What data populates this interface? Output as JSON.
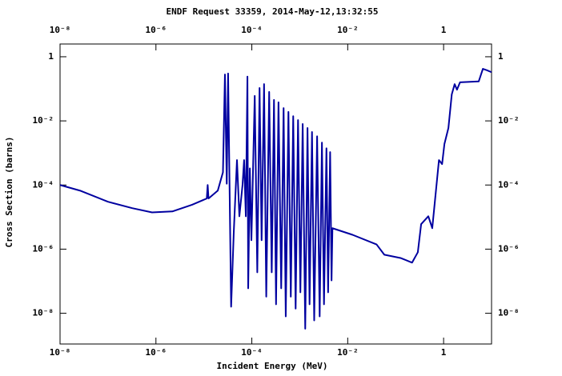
{
  "chart_data": {
    "type": "line",
    "title": "ENDF Request 33359, 2014-May-12,13:32:55",
    "xlabel": "Incident Energy (MeV)",
    "ylabel": "Cross Section (barns)",
    "xscale": "log",
    "yscale": "log",
    "xlim": [
      1e-08,
      10
    ],
    "ylim": [
      1.1e-09,
      2.5
    ],
    "xticks": [
      {
        "value": 1e-08,
        "label": "10⁻⁸"
      },
      {
        "value": 1e-06,
        "label": "10⁻⁶"
      },
      {
        "value": 0.0001,
        "label": "10⁻⁴"
      },
      {
        "value": 0.01,
        "label": "10⁻²"
      },
      1
    ],
    "yticks": [
      1,
      {
        "value": 0.01,
        "label": "10⁻²"
      },
      {
        "value": 0.0001,
        "label": "10⁻⁴"
      },
      {
        "value": 1e-06,
        "label": "10⁻⁶"
      },
      {
        "value": 1e-08,
        "label": "10⁻⁸"
      }
    ],
    "color": "#0000a0",
    "x": [
      1e-08,
      2.6e-08,
      1e-07,
      3.2e-07,
      8.3e-07,
      2.2e-06,
      5.6e-06,
      1.15e-05,
      1.2e-05,
      1.25e-05,
      1.95e-05,
      2.5e-05,
      2.75e-05,
      3e-05,
      3.2e-05,
      3.7e-05,
      4.2e-05,
      4.9e-05,
      5.5e-05,
      6.4e-05,
      6.9e-05,
      7.5e-05,
      8.1e-05,
      8.4e-05,
      9.1e-05,
      9.8e-05,
      0.000115,
      0.00013,
      0.000145,
      0.00016,
      0.00018,
      0.0002,
      0.00023,
      0.00026,
      0.00029,
      0.00032,
      0.00036,
      0.00041,
      0.00046,
      0.00051,
      0.00058,
      0.00065,
      0.00073,
      0.00082,
      0.00092,
      0.00103,
      0.00115,
      0.0013,
      0.00145,
      0.0016,
      0.0018,
      0.002,
      0.0023,
      0.0026,
      0.0029,
      0.0032,
      0.0036,
      0.0039,
      0.0043,
      0.0046,
      0.0048,
      0.0126,
      0.04,
      0.058,
      0.126,
      0.22,
      0.29,
      0.34,
      0.48,
      0.58,
      0.8,
      0.93,
      1.04,
      1.26,
      1.48,
      1.7,
      1.9,
      2.2,
      5.4,
      6.6,
      8.0,
      10
    ],
    "values": [
      0.0001,
      6.7e-05,
      3e-05,
      1.9e-05,
      1.4e-05,
      1.5e-05,
      2.4e-05,
      3.8e-05,
      0.0001,
      3.8e-05,
      6.7e-05,
      0.00025,
      0.28,
      0.00011,
      0.3,
      1.6e-08,
      3.3e-06,
      0.0006,
      1.06e-05,
      0.0001,
      0.0006,
      1.06e-05,
      0.24,
      6e-08,
      0.00033,
      1.9e-06,
      0.06,
      1.9e-07,
      0.106,
      1.9e-06,
      0.14,
      3.3e-08,
      0.08,
      1.9e-07,
      0.045,
      1.9e-08,
      0.038,
      6e-08,
      0.025,
      8e-09,
      0.019,
      3.3e-08,
      0.014,
      1.4e-08,
      0.0106,
      4.5e-08,
      0.008,
      3.3e-09,
      0.006,
      1.9e-08,
      0.0045,
      6e-09,
      0.0033,
      8e-09,
      0.0021,
      1.9e-08,
      0.0014,
      4.5e-08,
      0.00106,
      1.06e-07,
      4.5e-06,
      2.8e-06,
      1.4e-06,
      6.7e-07,
      5.3e-07,
      3.8e-07,
      8e-07,
      6e-06,
      1.06e-05,
      4.5e-06,
      0.0006,
      0.00045,
      0.0019,
      0.006,
      0.067,
      0.14,
      0.094,
      0.16,
      0.17,
      0.42,
      0.38,
      0.33
    ]
  }
}
